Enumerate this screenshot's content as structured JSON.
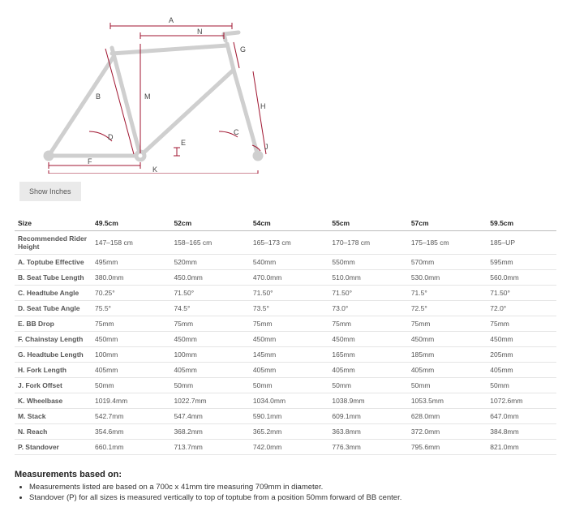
{
  "diagram": {
    "labels": [
      "A",
      "B",
      "C",
      "D",
      "E",
      "F",
      "G",
      "H",
      "J",
      "K",
      "M",
      "N"
    ],
    "line_color": "#a01530",
    "frame_color": "#cfcfcf"
  },
  "button": {
    "show_inches": "Show Inches"
  },
  "table": {
    "header": [
      "Size",
      "49.5cm",
      "52cm",
      "54cm",
      "55cm",
      "57cm",
      "59.5cm"
    ],
    "rows": [
      {
        "label": "Recommended Rider Height",
        "cells": [
          "147–158 cm",
          "158–165 cm",
          "165–173 cm",
          "170–178 cm",
          "175–185 cm",
          "185–UP"
        ]
      },
      {
        "label": "A. Toptube Effective",
        "cells": [
          "495mm",
          "520mm",
          "540mm",
          "550mm",
          "570mm",
          "595mm"
        ]
      },
      {
        "label": "B. Seat Tube Length",
        "cells": [
          "380.0mm",
          "450.0mm",
          "470.0mm",
          "510.0mm",
          "530.0mm",
          "560.0mm"
        ]
      },
      {
        "label": "C. Headtube Angle",
        "cells": [
          "70.25°",
          "71.50°",
          "71.50°",
          "71.50°",
          "71.5°",
          "71.50°"
        ]
      },
      {
        "label": "D. Seat Tube Angle",
        "cells": [
          "75.5°",
          "74.5°",
          "73.5°",
          "73.0°",
          "72.5°",
          "72.0°"
        ]
      },
      {
        "label": "E. BB Drop",
        "cells": [
          "75mm",
          "75mm",
          "75mm",
          "75mm",
          "75mm",
          "75mm"
        ]
      },
      {
        "label": "F. Chainstay Length",
        "cells": [
          "450mm",
          "450mm",
          "450mm",
          "450mm",
          "450mm",
          "450mm"
        ]
      },
      {
        "label": "G. Headtube Length",
        "cells": [
          "100mm",
          "100mm",
          "145mm",
          "165mm",
          "185mm",
          "205mm"
        ]
      },
      {
        "label": "H. Fork Length",
        "cells": [
          "405mm",
          "405mm",
          "405mm",
          "405mm",
          "405mm",
          "405mm"
        ]
      },
      {
        "label": "J. Fork Offset",
        "cells": [
          "50mm",
          "50mm",
          "50mm",
          "50mm",
          "50mm",
          "50mm"
        ]
      },
      {
        "label": "K. Wheelbase",
        "cells": [
          "1019.4mm",
          "1022.7mm",
          "1034.0mm",
          "1038.9mm",
          "1053.5mm",
          "1072.6mm"
        ]
      },
      {
        "label": "M. Stack",
        "cells": [
          "542.7mm",
          "547.4mm",
          "590.1mm",
          "609.1mm",
          "628.0mm",
          "647.0mm"
        ]
      },
      {
        "label": "N. Reach",
        "cells": [
          "354.6mm",
          "368.2mm",
          "365.2mm",
          "363.8mm",
          "372.0mm",
          "384.8mm"
        ]
      },
      {
        "label": "P. Standover",
        "cells": [
          "660.1mm",
          "713.7mm",
          "742.0mm",
          "776.3mm",
          "795.6mm",
          "821.0mm"
        ]
      }
    ]
  },
  "notes": {
    "title": "Measurements based on:",
    "items": [
      "Measurements listed are based on a 700c x 41mm tire measuring 709mm in diameter.",
      "Standover (P) for all sizes is measured vertically to top of toptube from a position 50mm forward of BB center."
    ]
  }
}
